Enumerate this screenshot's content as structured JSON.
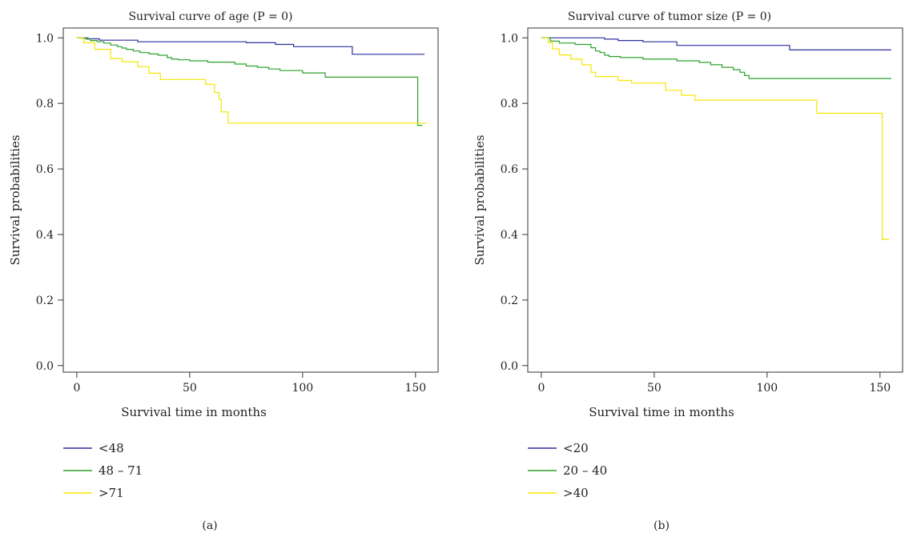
{
  "chart_data": [
    {
      "type": "line",
      "step": true,
      "title": "Survival curve of age (P = 0)",
      "xlabel": "Survival time in months",
      "ylabel": "Survival probabilities",
      "xlim": [
        -6,
        160
      ],
      "ylim": [
        -0.02,
        1.03
      ],
      "xticks": [
        0,
        50,
        100,
        150
      ],
      "yticks": [
        0.0,
        0.2,
        0.4,
        0.6,
        0.8,
        1.0
      ],
      "xtick_labels": [
        "0",
        "50",
        "100",
        "150"
      ],
      "ytick_labels": [
        "0.0",
        "0.2",
        "0.4",
        "0.6",
        "0.8",
        "1.0"
      ],
      "legend_placement": "below plot, left",
      "sub_label": "(a)",
      "series": [
        {
          "name": "<48",
          "color": "#2e2e9e",
          "x": [
            0,
            5,
            10,
            27,
            75,
            88,
            96,
            122,
            154
          ],
          "y": [
            1.0,
            0.997,
            0.993,
            0.988,
            0.985,
            0.98,
            0.973,
            0.95,
            0.95
          ]
        },
        {
          "name": "48 – 71",
          "color": "#2ca02c",
          "x": [
            0,
            2,
            4,
            6,
            9,
            12,
            15,
            18,
            20,
            22,
            25,
            28,
            32,
            36,
            40,
            42,
            45,
            50,
            58,
            70,
            75,
            80,
            85,
            90,
            100,
            110,
            150,
            151,
            153
          ],
          "y": [
            1.0,
            0.999,
            0.996,
            0.992,
            0.988,
            0.984,
            0.978,
            0.973,
            0.969,
            0.965,
            0.96,
            0.955,
            0.951,
            0.947,
            0.94,
            0.935,
            0.933,
            0.93,
            0.926,
            0.92,
            0.914,
            0.91,
            0.905,
            0.9,
            0.893,
            0.88,
            0.88,
            0.733,
            0.733
          ]
        },
        {
          "name": ">71",
          "color": "#f5e600",
          "x": [
            0,
            3,
            8,
            15,
            20,
            27,
            32,
            37,
            57,
            61,
            63,
            64,
            67,
            155
          ],
          "y": [
            1.0,
            0.985,
            0.965,
            0.937,
            0.927,
            0.912,
            0.892,
            0.873,
            0.858,
            0.833,
            0.812,
            0.774,
            0.74,
            0.74
          ]
        }
      ]
    },
    {
      "type": "line",
      "step": true,
      "title": "Survival curve of tumor size (P = 0)",
      "xlabel": "Survival time in months",
      "ylabel": "Survival probabilities",
      "xlim": [
        -6,
        160
      ],
      "ylim": [
        -0.02,
        1.03
      ],
      "xticks": [
        0,
        50,
        100,
        150
      ],
      "yticks": [
        0.0,
        0.2,
        0.4,
        0.6,
        0.8,
        1.0
      ],
      "xtick_labels": [
        "0",
        "50",
        "100",
        "150"
      ],
      "ytick_labels": [
        "0.0",
        "0.2",
        "0.4",
        "0.6",
        "0.8",
        "1.0"
      ],
      "legend_placement": "below plot, left",
      "sub_label": "(b)",
      "series": [
        {
          "name": "<20",
          "color": "#2e2e9e",
          "x": [
            0,
            28,
            34,
            45,
            60,
            110,
            155
          ],
          "y": [
            1.0,
            0.996,
            0.992,
            0.988,
            0.977,
            0.963,
            0.963
          ]
        },
        {
          "name": "20 – 40",
          "color": "#2ca02c",
          "x": [
            0,
            4,
            8,
            15,
            22,
            24,
            26,
            28,
            30,
            35,
            45,
            60,
            70,
            75,
            80,
            85,
            88,
            90,
            92,
            155
          ],
          "y": [
            1.0,
            0.99,
            0.984,
            0.98,
            0.97,
            0.96,
            0.955,
            0.947,
            0.943,
            0.94,
            0.935,
            0.93,
            0.925,
            0.918,
            0.91,
            0.903,
            0.895,
            0.885,
            0.876,
            0.876
          ]
        },
        {
          "name": ">40",
          "color": "#f5e600",
          "x": [
            0,
            3,
            5,
            8,
            13,
            18,
            22,
            24,
            34,
            40,
            55,
            62,
            68,
            122,
            151,
            154
          ],
          "y": [
            1.0,
            0.985,
            0.966,
            0.948,
            0.935,
            0.918,
            0.895,
            0.882,
            0.87,
            0.862,
            0.84,
            0.825,
            0.81,
            0.77,
            0.385,
            0.385
          ]
        }
      ]
    }
  ]
}
